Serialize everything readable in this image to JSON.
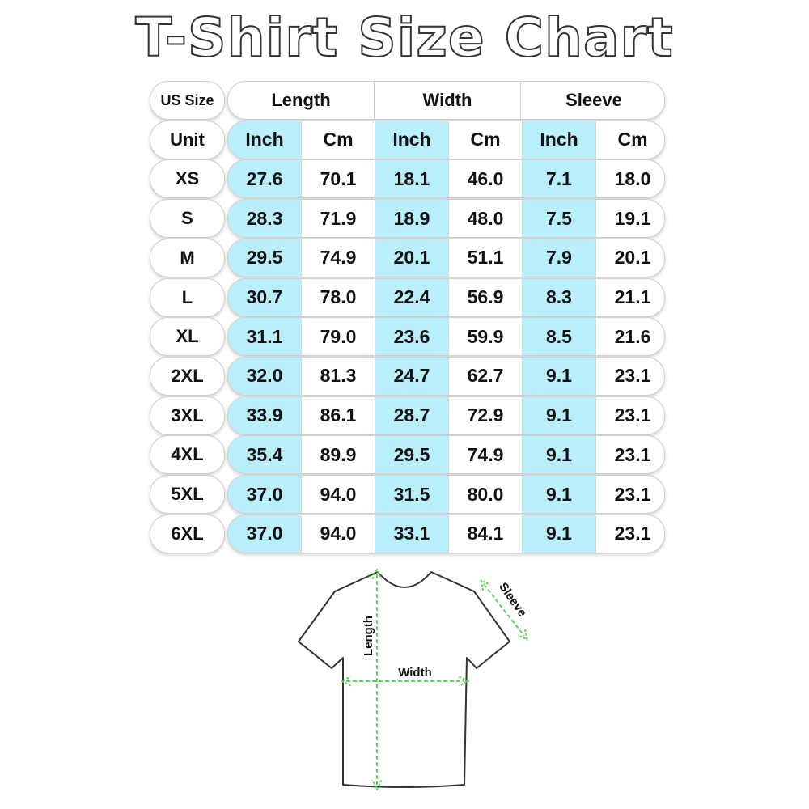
{
  "title": "T-Shirt Size Chart",
  "colors": {
    "inch_column": "#b9eefb",
    "arrow": "#5fd35f",
    "outline": "#333333"
  },
  "table": {
    "corner_label": "US Size",
    "unit_label": "Unit",
    "groups": [
      "Length",
      "Width",
      "Sleeve"
    ],
    "units": [
      "Inch",
      "Cm",
      "Inch",
      "Cm",
      "Inch",
      "Cm"
    ],
    "rows": [
      {
        "size": "XS",
        "values": [
          "27.6",
          "70.1",
          "18.1",
          "46.0",
          "7.1",
          "18.0"
        ]
      },
      {
        "size": "S",
        "values": [
          "28.3",
          "71.9",
          "18.9",
          "48.0",
          "7.5",
          "19.1"
        ]
      },
      {
        "size": "M",
        "values": [
          "29.5",
          "74.9",
          "20.1",
          "51.1",
          "7.9",
          "20.1"
        ]
      },
      {
        "size": "L",
        "values": [
          "30.7",
          "78.0",
          "22.4",
          "56.9",
          "8.3",
          "21.1"
        ]
      },
      {
        "size": "XL",
        "values": [
          "31.1",
          "79.0",
          "23.6",
          "59.9",
          "8.5",
          "21.6"
        ]
      },
      {
        "size": "2XL",
        "values": [
          "32.0",
          "81.3",
          "24.7",
          "62.7",
          "9.1",
          "23.1"
        ]
      },
      {
        "size": "3XL",
        "values": [
          "33.9",
          "86.1",
          "28.7",
          "72.9",
          "9.1",
          "23.1"
        ]
      },
      {
        "size": "4XL",
        "values": [
          "35.4",
          "89.9",
          "29.5",
          "74.9",
          "9.1",
          "23.1"
        ]
      },
      {
        "size": "5XL",
        "values": [
          "37.0",
          "94.0",
          "31.5",
          "80.0",
          "9.1",
          "23.1"
        ]
      },
      {
        "size": "6XL",
        "values": [
          "37.0",
          "94.0",
          "33.1",
          "84.1",
          "9.1",
          "23.1"
        ]
      }
    ]
  },
  "diagram": {
    "length_label": "Length",
    "width_label": "Width",
    "sleeve_label": "Sleeve"
  },
  "chart_data": {
    "type": "table",
    "title": "T-Shirt Size Chart",
    "columns": [
      "US Size",
      "Length Inch",
      "Length Cm",
      "Width Inch",
      "Width Cm",
      "Sleeve Inch",
      "Sleeve Cm"
    ],
    "rows": [
      [
        "XS",
        27.6,
        70.1,
        18.1,
        46.0,
        7.1,
        18.0
      ],
      [
        "S",
        28.3,
        71.9,
        18.9,
        48.0,
        7.5,
        19.1
      ],
      [
        "M",
        29.5,
        74.9,
        20.1,
        51.1,
        7.9,
        20.1
      ],
      [
        "L",
        30.7,
        78.0,
        22.4,
        56.9,
        8.3,
        21.1
      ],
      [
        "XL",
        31.1,
        79.0,
        23.6,
        59.9,
        8.5,
        21.6
      ],
      [
        "2XL",
        32.0,
        81.3,
        24.7,
        62.7,
        9.1,
        23.1
      ],
      [
        "3XL",
        33.9,
        86.1,
        28.7,
        72.9,
        9.1,
        23.1
      ],
      [
        "4XL",
        35.4,
        89.9,
        29.5,
        74.9,
        9.1,
        23.1
      ],
      [
        "5XL",
        37.0,
        94.0,
        31.5,
        80.0,
        9.1,
        23.1
      ],
      [
        "6XL",
        37.0,
        94.0,
        33.1,
        84.1,
        9.1,
        23.1
      ]
    ]
  }
}
